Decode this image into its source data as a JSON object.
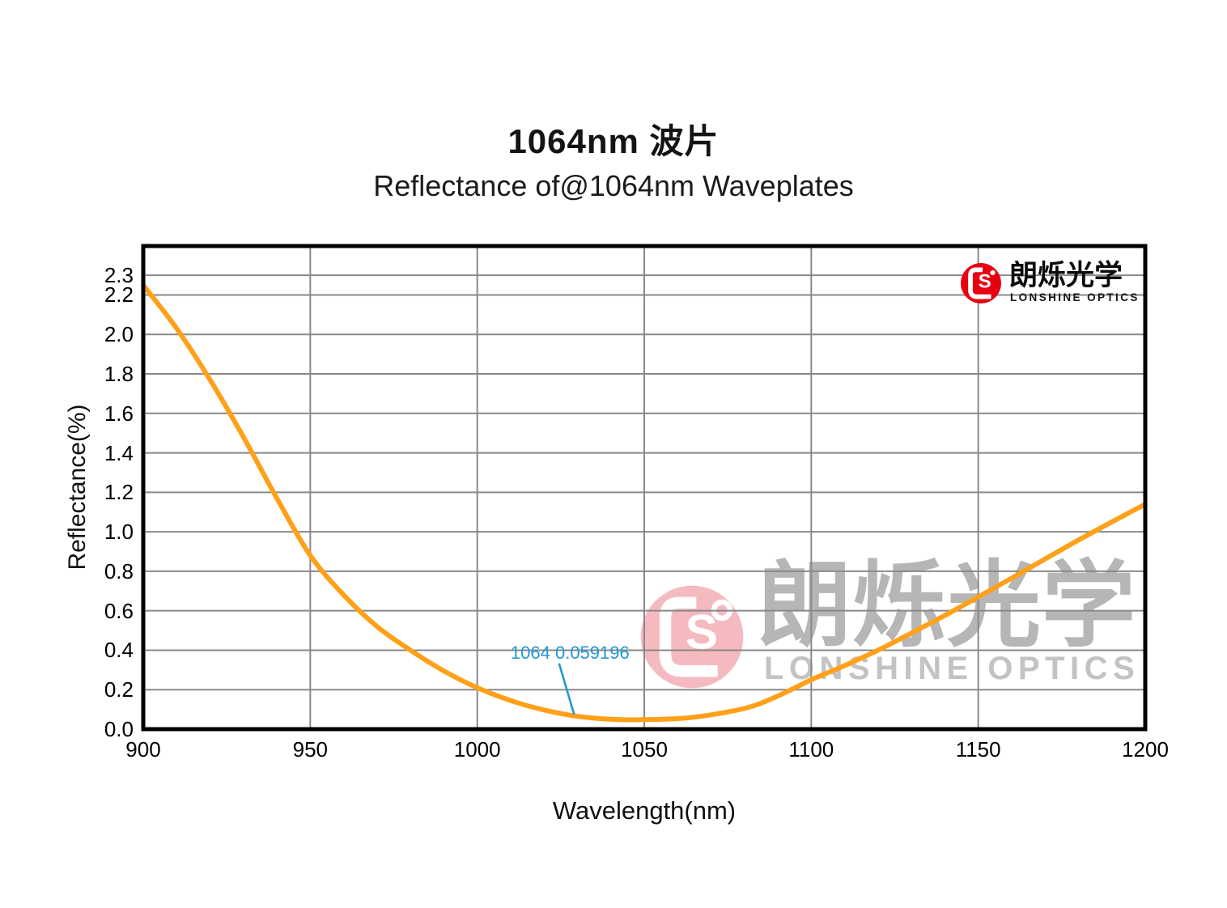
{
  "header": {
    "title": "1064nm 波片",
    "subtitle": "Reflectance of@1064nm Waveplates"
  },
  "brand": {
    "name_cn": "朗烁光学",
    "name_en": "LONSHINE OPTICS",
    "logo_color": "#e60012"
  },
  "watermark": {
    "text_cn": "朗烁光学",
    "text_en": "LONSHINE OPTICS",
    "text_color_cn": "#b6b6b6",
    "text_color_en": "#c3c3c3",
    "circle_color": "#f5bac0"
  },
  "chart_data": {
    "type": "line",
    "title": "1064nm 波片",
    "subtitle": "Reflectance of@1064nm Waveplates",
    "xlabel": "Wavelength(nm)",
    "ylabel": "Reflectance(%)",
    "xlim": [
      900,
      1200
    ],
    "ylim": [
      0,
      2.448
    ],
    "x_ticks": [
      900,
      950,
      1000,
      1050,
      1100,
      1150,
      1200
    ],
    "y_ticks": [
      0.0,
      0.2,
      0.4,
      0.6,
      0.8,
      1.0,
      1.2,
      1.4,
      1.6,
      1.8,
      2.0,
      2.2,
      2.3
    ],
    "grid": true,
    "grid_color": "#898989",
    "axis_color": "#000000",
    "line_color": "#ffa019",
    "series": [
      {
        "name": "Reflectance",
        "x": [
          900,
          910,
          920,
          930,
          940,
          950,
          960,
          970,
          980,
          990,
          1000,
          1010,
          1020,
          1030,
          1040,
          1050,
          1064,
          1080,
          1090,
          1100,
          1110,
          1120,
          1130,
          1140,
          1150,
          1160,
          1170,
          1180,
          1190,
          1200
        ],
        "y": [
          2.25,
          2.03,
          1.77,
          1.48,
          1.17,
          0.88,
          0.68,
          0.52,
          0.4,
          0.295,
          0.21,
          0.145,
          0.097,
          0.065,
          0.05,
          0.048,
          0.059,
          0.105,
          0.168,
          0.25,
          0.322,
          0.4,
          0.487,
          0.576,
          0.67,
          0.765,
          0.862,
          0.958,
          1.05,
          1.14
        ]
      }
    ],
    "annotation": {
      "text": "1064 0.059196",
      "wavelength": 1064,
      "value": 0.059196,
      "color": "#2398d4",
      "label_pos": {
        "x": 1010,
        "y": 0.44
      },
      "leader": {
        "x1": 1024.5,
        "y1": 0.333,
        "x2": 1029,
        "y2": 0.075
      }
    }
  }
}
